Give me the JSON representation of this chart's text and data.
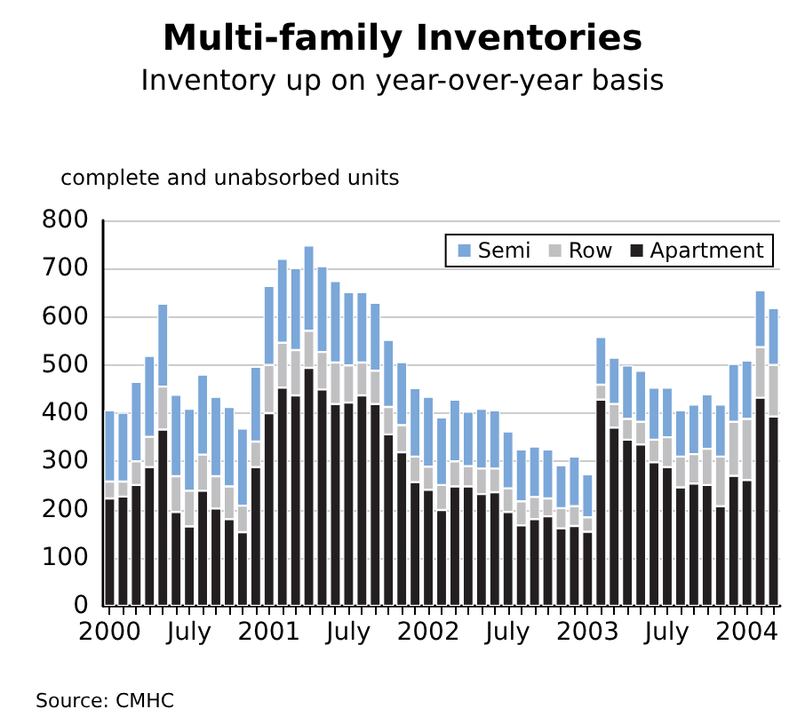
{
  "chart_data": {
    "type": "bar",
    "title": "Multi-family Inventories",
    "subtitle": "Inventory up on year-over-year basis",
    "ylabel": "complete and unabsorbed units",
    "annotations": [
      "Source: CMHC"
    ],
    "categories": [
      "2000",
      null,
      null,
      null,
      null,
      null,
      "July",
      null,
      null,
      null,
      null,
      null,
      "2001",
      null,
      null,
      null,
      null,
      null,
      "July",
      null,
      null,
      null,
      null,
      null,
      "2002",
      null,
      null,
      null,
      null,
      null,
      "July",
      null,
      null,
      null,
      null,
      null,
      "2003",
      null,
      null,
      null,
      null,
      null,
      "July",
      null,
      null,
      null,
      null,
      null,
      "2004",
      null,
      null
    ],
    "stacked": true,
    "series": [
      {
        "name": "Apartment",
        "color": "#231f20",
        "values": [
          223,
          227,
          251,
          288,
          366,
          195,
          165,
          239,
          202,
          180,
          153,
          288,
          400,
          453,
          437,
          494,
          449,
          419,
          422,
          437,
          419,
          356,
          319,
          257,
          241,
          199,
          248,
          248,
          232,
          236,
          195,
          167,
          180,
          186,
          161,
          166,
          154,
          428,
          370,
          345,
          335,
          298,
          288,
          246,
          254,
          251,
          207,
          270,
          261,
          432,
          393
        ]
      },
      {
        "name": "Row",
        "color": "#c0c0c2",
        "values": [
          35,
          31,
          49,
          63,
          89,
          74,
          74,
          75,
          67,
          68,
          55,
          53,
          100,
          93,
          94,
          77,
          78,
          86,
          77,
          68,
          69,
          57,
          56,
          53,
          48,
          52,
          52,
          42,
          53,
          49,
          49,
          50,
          46,
          37,
          42,
          41,
          30,
          31,
          49,
          43,
          47,
          47,
          62,
          64,
          61,
          75,
          103,
          112,
          127,
          105,
          107
        ]
      },
      {
        "name": "Semi",
        "color": "#7ba7d9",
        "values": [
          148,
          143,
          165,
          168,
          172,
          169,
          170,
          166,
          165,
          165,
          160,
          155,
          164,
          174,
          170,
          177,
          178,
          169,
          152,
          146,
          141,
          139,
          131,
          142,
          145,
          140,
          128,
          113,
          124,
          121,
          118,
          108,
          105,
          102,
          89,
          103,
          89,
          99,
          96,
          111,
          106,
          108,
          103,
          96,
          103,
          113,
          108,
          120,
          121,
          118,
          118
        ]
      }
    ],
    "ylim": [
      0,
      800
    ],
    "yticks": [
      0,
      100,
      200,
      300,
      400,
      500,
      600,
      700,
      800
    ],
    "grid": "y",
    "legend": "top right"
  }
}
